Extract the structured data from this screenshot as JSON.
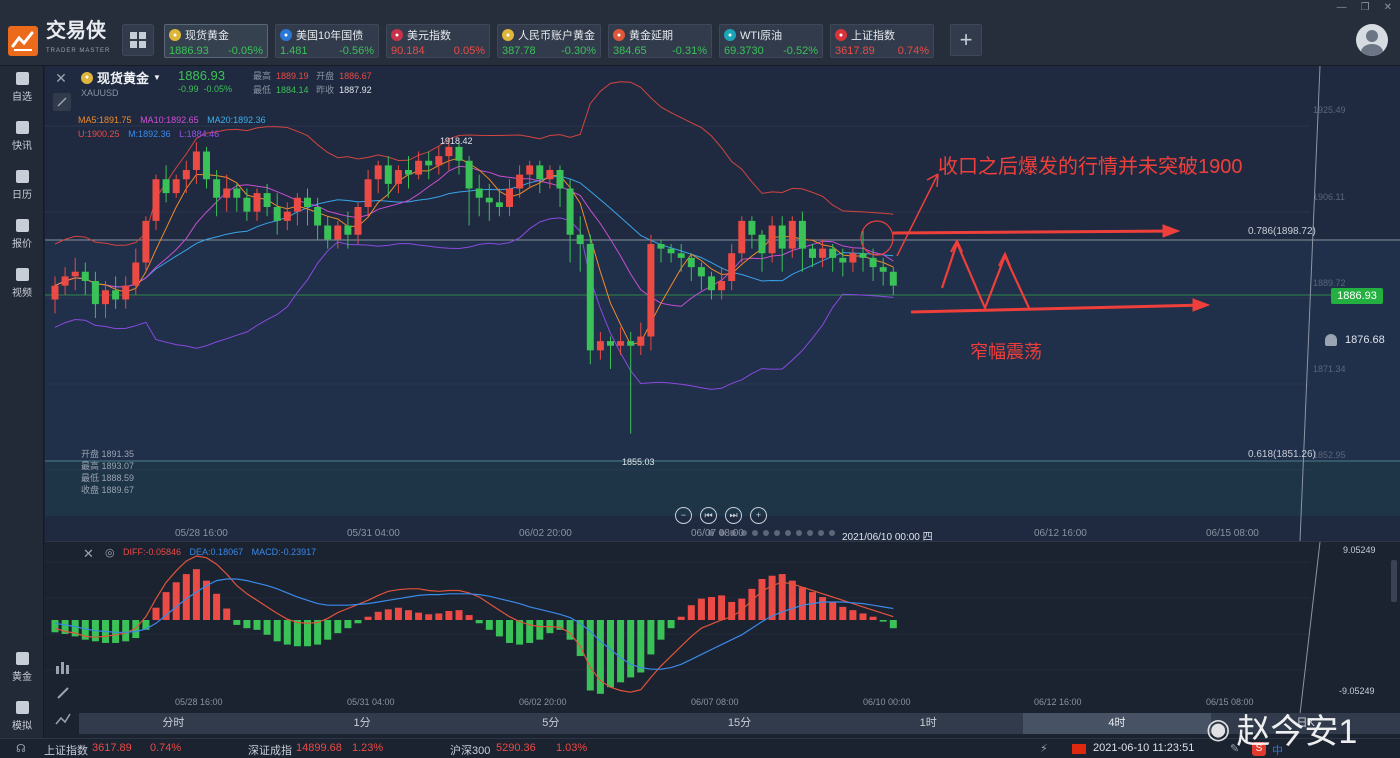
{
  "app": {
    "logo_text": "交易侠",
    "logo_sub": "TRADER MASTER"
  },
  "colors": {
    "up": "#ec4a45",
    "down": "#3ac157",
    "accent": "#ec6a1c",
    "annotation": "#ee3f3b"
  },
  "quotes": [
    {
      "name": "现货黄金",
      "price": "1886.93",
      "change": "-0.05%",
      "dir": "down",
      "icon": "gold-icon",
      "icon_color": "#e0b63a",
      "active": true
    },
    {
      "name": "美国10年国债",
      "price": "1.481",
      "change": "-0.56%",
      "dir": "down",
      "icon": "bond-icon",
      "icon_color": "#2b78d4",
      "active": false
    },
    {
      "name": "美元指数",
      "price": "90.184",
      "change": "0.05%",
      "dir": "up",
      "icon": "us-flag-icon",
      "icon_color": "#c8324a",
      "active": false
    },
    {
      "name": "人民币账户黄金",
      "price": "387.78",
      "change": "-0.30%",
      "dir": "down",
      "icon": "gold-icon",
      "icon_color": "#e0b63a",
      "active": false
    },
    {
      "name": "黄金延期",
      "price": "384.65",
      "change": "-0.31%",
      "dir": "down",
      "icon": "sge-icon",
      "icon_color": "#e0583a",
      "active": false
    },
    {
      "name": "WTI原油",
      "price": "69.3730",
      "change": "-0.52%",
      "dir": "down",
      "icon": "oil-icon",
      "icon_color": "#1aa6b6",
      "active": false
    },
    {
      "name": "上证指数",
      "price": "3617.89",
      "change": "0.74%",
      "dir": "up",
      "icon": "sse-icon",
      "icon_color": "#d9323a",
      "active": false
    }
  ],
  "sidebar": {
    "top": [
      {
        "label": "自选",
        "icon": "star-icon"
      },
      {
        "label": "快讯",
        "icon": "news-icon"
      },
      {
        "label": "日历",
        "icon": "calendar-icon"
      },
      {
        "label": "报价",
        "icon": "quote-icon"
      },
      {
        "label": "视频",
        "icon": "video-icon"
      }
    ],
    "bottom": [
      {
        "label": "黄金",
        "icon": "gold-bar-icon"
      },
      {
        "label": "模拟",
        "icon": "wallet-icon"
      }
    ]
  },
  "symbol": {
    "name": "现货黄金",
    "code": "XAUUSD",
    "price": "1886.93",
    "change": "-0.99",
    "change_pct": "-0.05%",
    "high_label": "最高",
    "high": "1889.19",
    "open_label": "开盘",
    "open": "1886.67",
    "low_label": "最低",
    "low": "1884.14",
    "prev_label": "昨收",
    "prev": "1887.92"
  },
  "indicators": {
    "ma5": "MA5:1891.75",
    "ma10": "MA10:1892.65",
    "ma20": "MA20:1892.36",
    "u": "U:1900.25",
    "m": "M:1892.36",
    "l": "L:1884.46"
  },
  "y_ticks": [
    "1925.49",
    "1906.11",
    "1889.72",
    "1871.34",
    "1852.95"
  ],
  "fib": {
    "f786": "0.786(1898.72)",
    "f618": "0.618(1851.26)"
  },
  "price_tag": "1886.93",
  "alarm_price": "1876.68",
  "labels": {
    "high_peak": "1918.42",
    "low_peak": "1855.03"
  },
  "ohlc_box": [
    "开盘 1891.35",
    "最高 1893.07",
    "最低 1888.59",
    "收盘 1889.67"
  ],
  "x_ticks_main": [
    "05/28 16:00",
    "05/31 04:00",
    "06/02 20:00",
    "06/07 08:00",
    "2021/06/10 00:00 四",
    "06/12 16:00",
    "06/15 08:00"
  ],
  "x_ticks_sub": [
    "05/28 16:00",
    "05/31 04:00",
    "06/02 20:00",
    "06/07 08:00",
    "06/10 00:00",
    "06/12 16:00",
    "06/15 08:00"
  ],
  "annotations": {
    "top": "收口之后爆发的行情并未突破1900",
    "bottom": "窄幅震荡"
  },
  "macd": {
    "diff": "DIFF:-0.05846",
    "dea": "DEA:0.18067",
    "macd": "MACD:-0.23917",
    "y_top": "9.05249",
    "y_bottom": "-9.05249"
  },
  "timeframes": [
    "分时",
    "1分",
    "5分",
    "15分",
    "1时",
    "4时",
    "日K"
  ],
  "active_timeframe": "4时",
  "status": {
    "sh_name": "上证指数",
    "sh_val": "3617.89",
    "sh_pct": "0.74%",
    "sz_name": "深证成指",
    "sz_val": "14899.68",
    "sz_pct": "1.23%",
    "hs_name": "沪深300",
    "hs_val": "5290.36",
    "hs_pct": "1.03%",
    "datetime": "2021-06-10 11:23:51",
    "ime": "中"
  },
  "watermark": "赵今安1",
  "candles": [
    [
      1884,
      1887,
      1881,
      1889
    ],
    [
      1887,
      1889,
      1885,
      1891
    ],
    [
      1889,
      1890,
      1886,
      1893
    ],
    [
      1890,
      1888,
      1885,
      1892
    ],
    [
      1888,
      1883,
      1880,
      1890
    ],
    [
      1883,
      1886,
      1880,
      1888
    ],
    [
      1886,
      1884,
      1882,
      1889
    ],
    [
      1884,
      1887,
      1882,
      1889
    ],
    [
      1887,
      1892,
      1885,
      1895
    ],
    [
      1892,
      1901,
      1890,
      1902
    ],
    [
      1901,
      1910,
      1899,
      1911
    ],
    [
      1910,
      1907,
      1905,
      1913
    ],
    [
      1907,
      1910,
      1906,
      1911
    ],
    [
      1910,
      1912,
      1907,
      1914
    ],
    [
      1912,
      1916,
      1909,
      1918
    ],
    [
      1916,
      1910,
      1908,
      1917
    ],
    [
      1910,
      1906,
      1902,
      1912
    ],
    [
      1906,
      1908,
      1903,
      1911
    ],
    [
      1908,
      1906,
      1903,
      1909
    ],
    [
      1906,
      1903,
      1901,
      1908
    ],
    [
      1903,
      1907,
      1901,
      1908
    ],
    [
      1907,
      1904,
      1902,
      1909
    ],
    [
      1904,
      1901,
      1898,
      1907
    ],
    [
      1901,
      1903,
      1899,
      1905
    ],
    [
      1903,
      1906,
      1900,
      1907
    ],
    [
      1906,
      1904,
      1900,
      1908
    ],
    [
      1904,
      1900,
      1897,
      1906
    ],
    [
      1900,
      1897,
      1895,
      1902
    ],
    [
      1897,
      1900,
      1895,
      1901
    ],
    [
      1900,
      1898,
      1895,
      1903
    ],
    [
      1898,
      1904,
      1896,
      1905
    ],
    [
      1904,
      1910,
      1902,
      1912
    ],
    [
      1910,
      1913,
      1907,
      1914
    ],
    [
      1913,
      1909,
      1906,
      1915
    ],
    [
      1909,
      1912,
      1907,
      1913
    ],
    [
      1912,
      1911,
      1908,
      1915
    ],
    [
      1911,
      1914,
      1910,
      1916
    ],
    [
      1914,
      1913,
      1910,
      1916
    ],
    [
      1913,
      1915,
      1911,
      1917
    ],
    [
      1915,
      1917,
      1912,
      1919
    ],
    [
      1917,
      1914,
      1911,
      1918
    ],
    [
      1914,
      1908,
      1900,
      1915
    ],
    [
      1908,
      1906,
      1902,
      1911
    ],
    [
      1906,
      1905,
      1901,
      1909
    ],
    [
      1905,
      1904,
      1902,
      1908
    ],
    [
      1904,
      1908,
      1902,
      1910
    ],
    [
      1908,
      1911,
      1906,
      1913
    ],
    [
      1911,
      1913,
      1908,
      1914
    ],
    [
      1913,
      1910,
      1907,
      1914
    ],
    [
      1910,
      1912,
      1908,
      1913
    ],
    [
      1912,
      1908,
      1904,
      1913
    ],
    [
      1908,
      1898,
      1892,
      1910
    ],
    [
      1898,
      1896,
      1890,
      1902
    ],
    [
      1896,
      1873,
      1870,
      1898
    ],
    [
      1873,
      1875,
      1871,
      1877
    ],
    [
      1875,
      1874,
      1869,
      1876
    ],
    [
      1874,
      1875,
      1872,
      1878
    ],
    [
      1875,
      1874,
      1855,
      1877
    ],
    [
      1874,
      1876,
      1872,
      1879
    ],
    [
      1876,
      1896,
      1873,
      1898
    ],
    [
      1896,
      1895,
      1892,
      1897
    ],
    [
      1895,
      1894,
      1892,
      1896
    ],
    [
      1894,
      1893,
      1890,
      1896
    ],
    [
      1893,
      1891,
      1888,
      1894
    ],
    [
      1891,
      1889,
      1886,
      1892
    ],
    [
      1889,
      1886,
      1884,
      1890
    ],
    [
      1886,
      1888,
      1884,
      1891
    ],
    [
      1888,
      1894,
      1886,
      1896
    ],
    [
      1894,
      1901,
      1892,
      1902
    ],
    [
      1901,
      1898,
      1895,
      1902
    ],
    [
      1898,
      1894,
      1890,
      1899
    ],
    [
      1894,
      1900,
      1892,
      1902
    ],
    [
      1900,
      1895,
      1890,
      1902
    ],
    [
      1895,
      1901,
      1893,
      1902
    ],
    [
      1901,
      1895,
      1890,
      1903
    ],
    [
      1895,
      1893,
      1891,
      1896
    ],
    [
      1893,
      1895,
      1891,
      1897
    ],
    [
      1895,
      1893,
      1890,
      1896
    ],
    [
      1893,
      1892,
      1889,
      1895
    ],
    [
      1892,
      1894,
      1890,
      1895
    ],
    [
      1894,
      1893,
      1890,
      1899
    ],
    [
      1893,
      1891,
      1888,
      1895
    ],
    [
      1891,
      1890,
      1887,
      1893
    ],
    [
      1890,
      1887,
      1885,
      1891
    ]
  ],
  "macd_bars": [
    -1.5,
    -1.7,
    -2.0,
    -2.4,
    -2.6,
    -2.8,
    -2.8,
    -2.6,
    -2.2,
    -1.2,
    1.5,
    3.4,
    4.6,
    5.6,
    6.2,
    4.8,
    3.2,
    1.4,
    -0.6,
    -1.0,
    -1.2,
    -1.8,
    -2.6,
    -3.0,
    -3.2,
    -3.2,
    -3.0,
    -2.4,
    -1.6,
    -1.0,
    -0.4,
    0.4,
    1.0,
    1.3,
    1.5,
    1.2,
    0.9,
    0.7,
    0.8,
    1.1,
    1.2,
    0.6,
    -0.4,
    -1.2,
    -2.0,
    -2.8,
    -3.0,
    -2.8,
    -2.4,
    -1.6,
    -1.2,
    -2.4,
    -4.4,
    -8.6,
    -9.0,
    -8.2,
    -7.6,
    -7.0,
    -6.4,
    -4.2,
    -2.4,
    -1.0,
    0.4,
    1.8,
    2.6,
    2.8,
    3.0,
    2.2,
    2.6,
    3.8,
    5.0,
    5.4,
    5.6,
    4.8,
    4.0,
    3.4,
    2.8,
    2.2,
    1.6,
    1.2,
    0.8,
    0.4,
    -0.2,
    -1.0
  ],
  "macd_diff": [
    -1.0,
    -1.4,
    -1.6,
    -2.0,
    -2.1,
    -2.0,
    -1.8,
    -1.6,
    -1.0,
    0.4,
    2.6,
    4.6,
    6.0,
    7.2,
    7.8,
    7.6,
    6.8,
    5.6,
    4.2,
    3.2,
    2.4,
    1.6,
    0.8,
    0.1,
    -0.3,
    -0.4,
    -0.3,
    0.2,
    0.9,
    1.4,
    1.9,
    2.4,
    3.0,
    3.5,
    3.7,
    3.8,
    3.8,
    3.6,
    3.5,
    3.6,
    3.6,
    3.3,
    2.8,
    2.0,
    1.2,
    0.4,
    -0.2,
    -0.6,
    -0.8,
    -0.8,
    -0.9,
    -1.6,
    -3.2,
    -5.8,
    -7.4,
    -8.2,
    -8.6,
    -8.8,
    -8.5,
    -7.0,
    -5.6,
    -4.4,
    -3.2,
    -2.0,
    -1.0,
    -0.5,
    0.0,
    0.4,
    1.2,
    2.4,
    3.5,
    4.2,
    4.6,
    4.4,
    4.0,
    3.6,
    3.2,
    2.8,
    2.4,
    2.0,
    1.6,
    1.2,
    0.8,
    0.4
  ],
  "macd_dea": [
    -0.4,
    -0.6,
    -0.8,
    -1.1,
    -1.3,
    -1.4,
    -1.5,
    -1.5,
    -1.4,
    -1.1,
    -0.4,
    0.6,
    1.6,
    2.6,
    3.4,
    4.2,
    4.8,
    5.0,
    5.0,
    4.8,
    4.5,
    4.2,
    3.8,
    3.3,
    2.8,
    2.4,
    2.0,
    1.8,
    1.8,
    1.8,
    1.9,
    2.0,
    2.2,
    2.4,
    2.6,
    2.8,
    3.0,
    3.1,
    3.1,
    3.2,
    3.2,
    3.2,
    3.1,
    2.9,
    2.6,
    2.3,
    2.0,
    1.6,
    1.3,
    1.0,
    0.7,
    0.3,
    -0.4,
    -1.4,
    -2.6,
    -3.6,
    -4.6,
    -5.4,
    -5.8,
    -6.0,
    -6.0,
    -5.8,
    -5.4,
    -4.8,
    -4.2,
    -3.6,
    -3.0,
    -2.4,
    -1.8,
    -1.0,
    -0.2,
    0.5,
    1.0,
    1.4,
    1.8,
    2.0,
    2.2,
    2.2,
    2.2,
    2.1,
    2.0,
    1.8,
    1.6,
    1.4
  ]
}
